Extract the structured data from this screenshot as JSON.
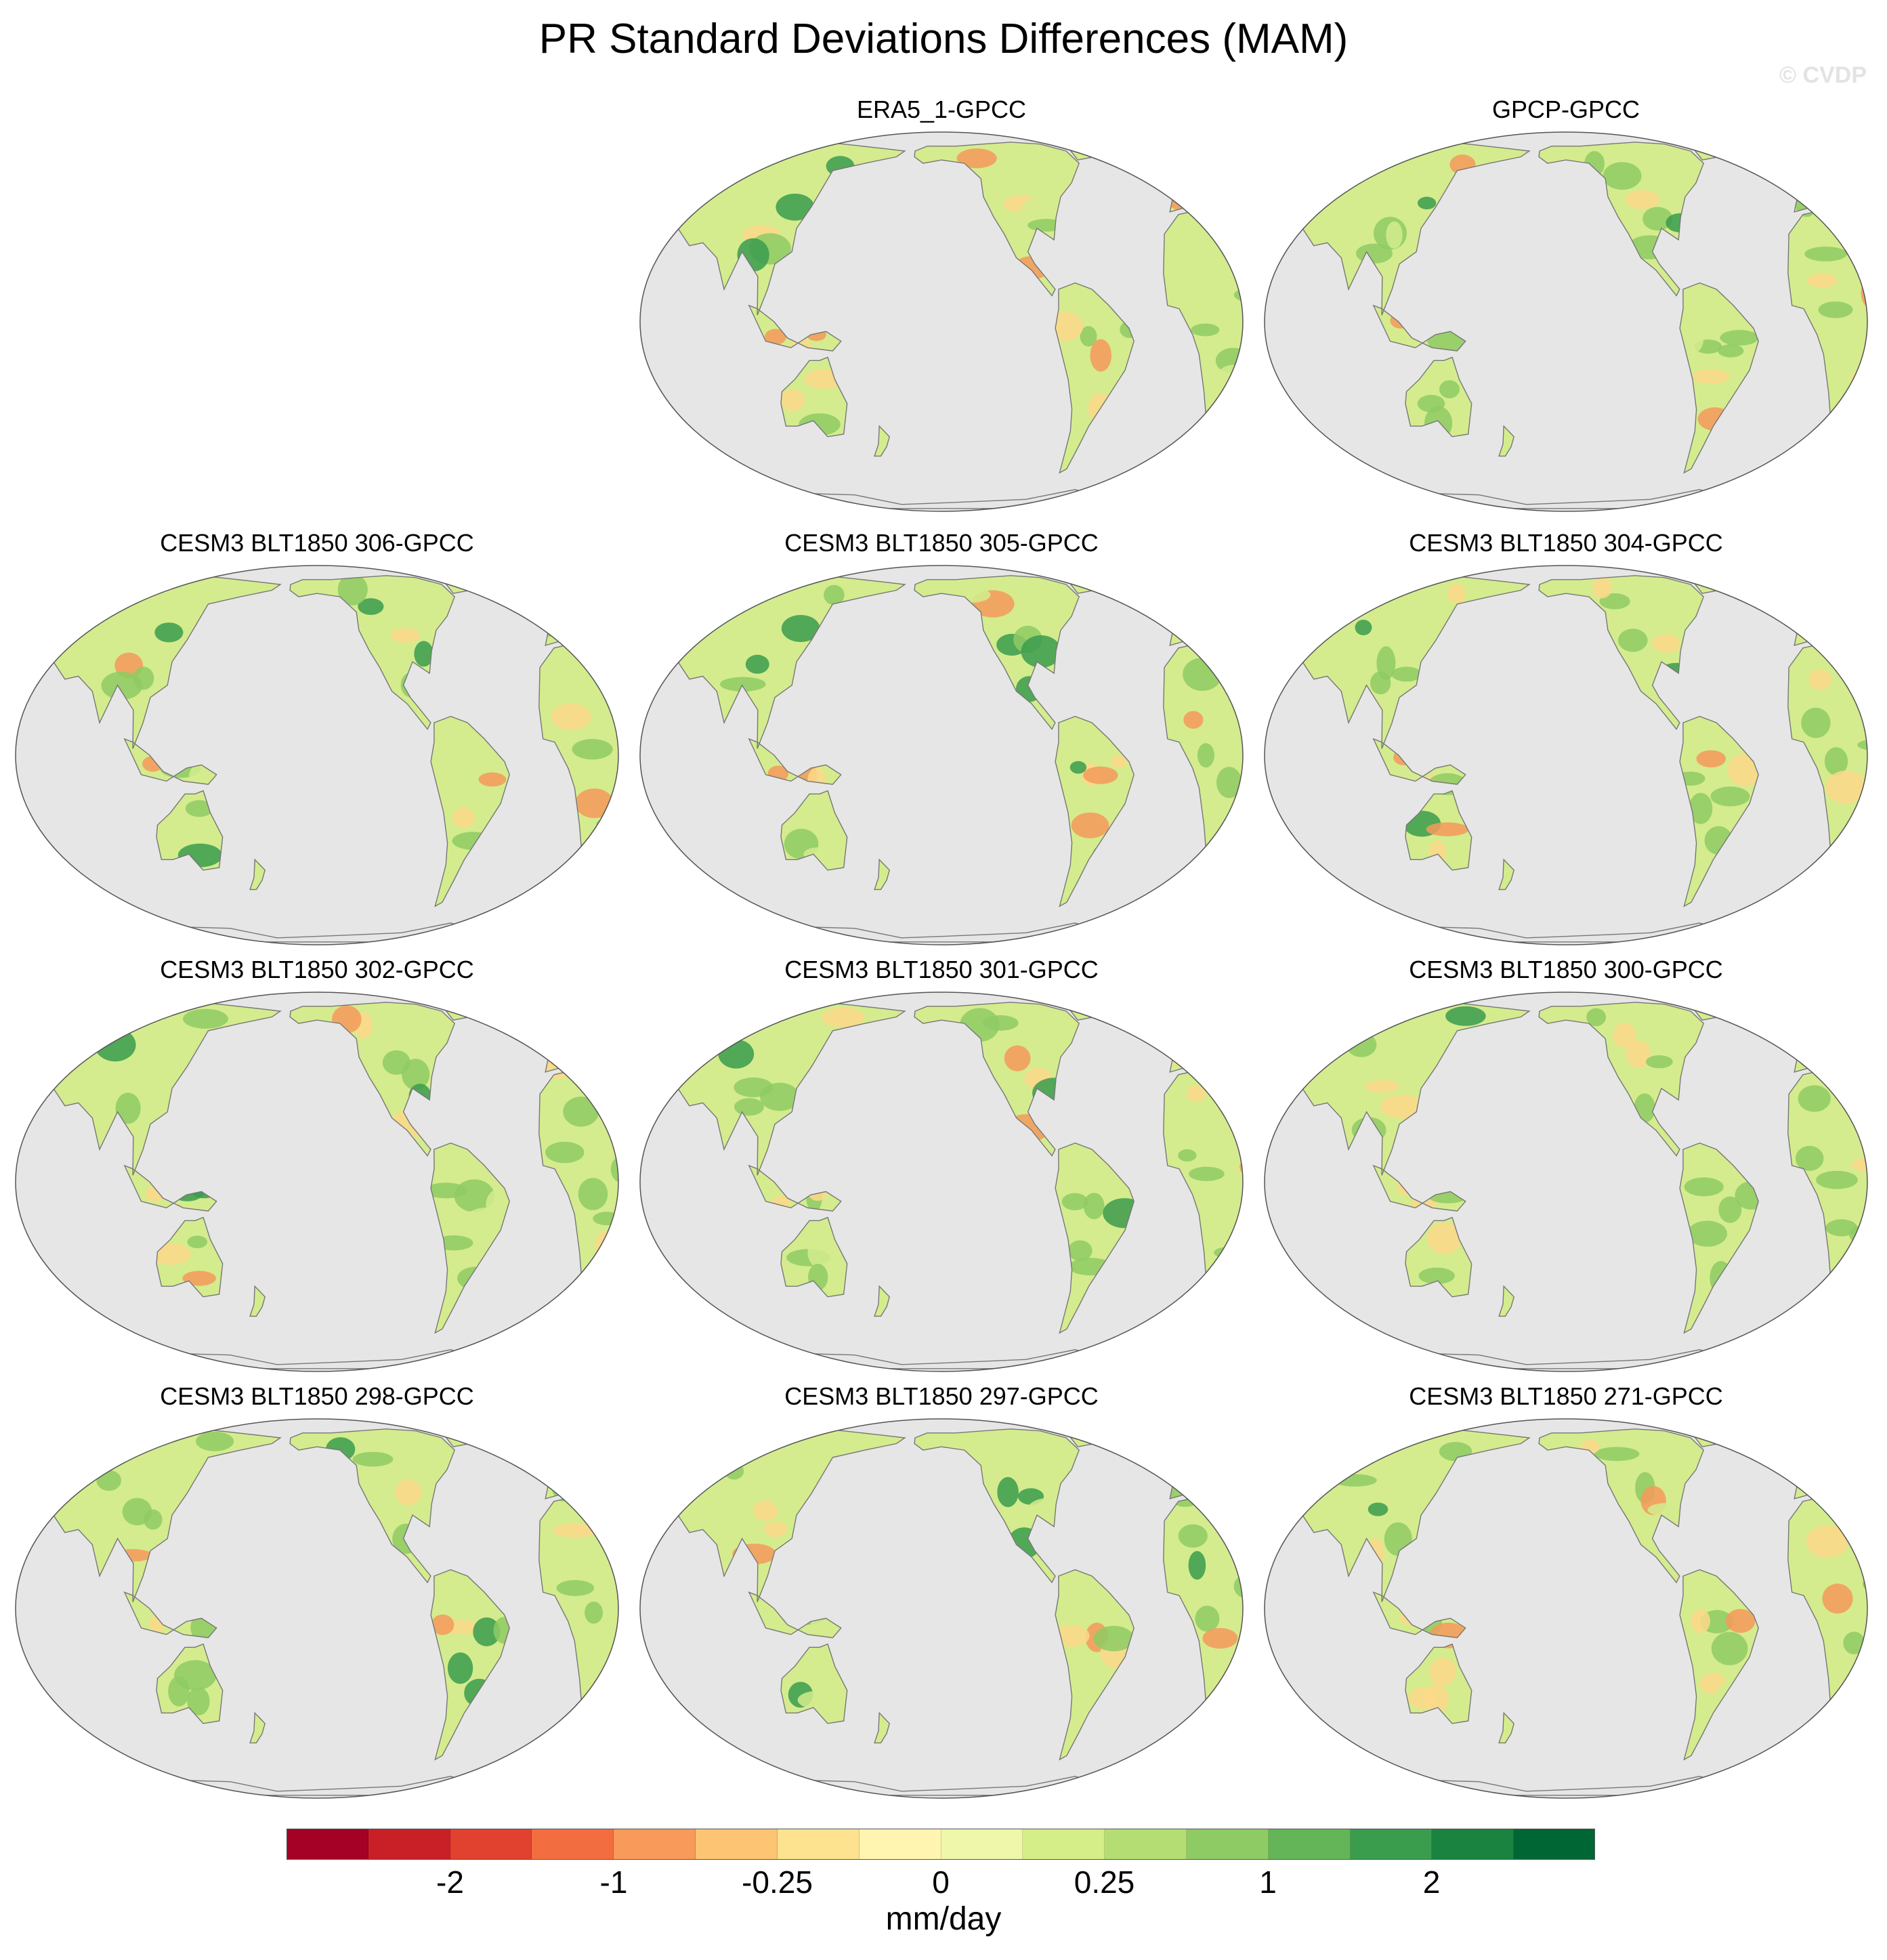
{
  "title": "PR Standard Deviations Differences (MAM)",
  "watermark": "© CVDP",
  "panels": [
    {
      "label": "ERA5_1-GPCC",
      "variant": 0
    },
    {
      "label": "GPCP-GPCC",
      "variant": 1
    },
    {
      "label": "CESM3 BLT1850 306-GPCC",
      "variant": 2
    },
    {
      "label": "CESM3 BLT1850 305-GPCC",
      "variant": 3
    },
    {
      "label": "CESM3 BLT1850 304-GPCC",
      "variant": 4
    },
    {
      "label": "CESM3 BLT1850 302-GPCC",
      "variant": 5
    },
    {
      "label": "CESM3 BLT1850 301-GPCC",
      "variant": 6
    },
    {
      "label": "CESM3 BLT1850 300-GPCC",
      "variant": 7
    },
    {
      "label": "CESM3 BLT1850 298-GPCC",
      "variant": 8
    },
    {
      "label": "CESM3 BLT1850 297-GPCC",
      "variant": 9
    },
    {
      "label": "CESM3 BLT1850 271-GPCC",
      "variant": 10
    }
  ],
  "colorbar": {
    "units": "mm/day",
    "colors": [
      "#a50026",
      "#c92027",
      "#e0422f",
      "#f26d3f",
      "#f89a59",
      "#fcc473",
      "#fde38f",
      "#fff4b0",
      "#eff7aa",
      "#d5ee88",
      "#b4de74",
      "#8ecb64",
      "#63b557",
      "#3a9c4d",
      "#1a8340",
      "#006634"
    ],
    "tick_labels": [
      "-2",
      "-1",
      "-0.25",
      "0",
      "0.25",
      "1",
      "2"
    ],
    "tick_boundary_index": [
      2,
      4,
      6,
      8,
      10,
      12,
      14
    ]
  },
  "map_colors": {
    "ocean": "#e6e6e6",
    "land": "#d4ec8e",
    "coast": "#777777",
    "dry": "#fbd98a",
    "dry_strong": "#f49a5a",
    "wet": "#8ecb64",
    "wet_strong": "#3a9c4d"
  }
}
